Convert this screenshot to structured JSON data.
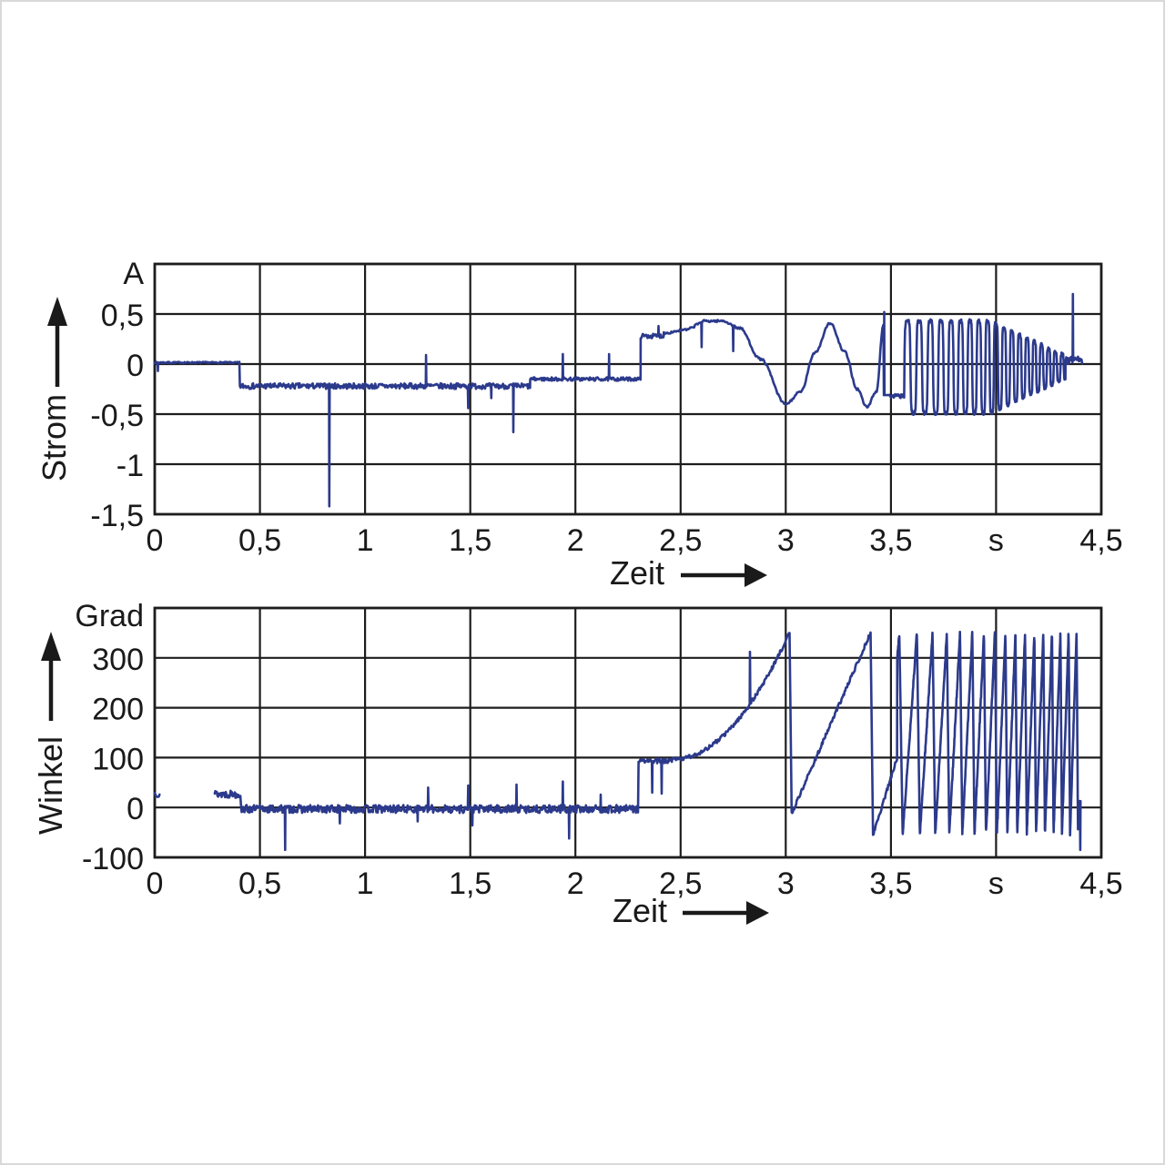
{
  "figure": {
    "background": "#ffffff",
    "frame_color": "#d9d9d9",
    "line_color": "#2c3a8c",
    "grid_color": "#1d1d1d",
    "text_color": "#1a1a1a"
  },
  "chart_data": [
    {
      "id": "strom",
      "type": "line",
      "title": "",
      "xlabel": "Zeit",
      "ylabel": "Strom",
      "unit_label": "A",
      "x_unit": "s",
      "x_range": [
        0,
        4.5
      ],
      "y_range": [
        -1.5,
        1.0
      ],
      "grid": true,
      "legend": "none",
      "x_ticks": {
        "values": [
          0,
          0.5,
          1,
          1.5,
          2,
          2.5,
          3,
          3.5,
          4,
          4.5
        ],
        "labels": [
          "0",
          "0,5",
          "1",
          "1,5",
          "2",
          "2,5",
          "3",
          "3,5",
          "s",
          "4,5"
        ]
      },
      "y_ticks": {
        "values": [
          0.5,
          0,
          -0.5,
          -1,
          -1.5
        ],
        "labels": [
          "0,5",
          "0",
          "-0,5",
          "-1",
          "-1,5"
        ]
      },
      "grid_y_values": [
        1.0,
        0.5,
        0,
        -0.5,
        -1.0,
        -1.5
      ],
      "segments": [
        {
          "type": "flat",
          "t0": 0.0,
          "t1": 0.405,
          "y": 0.015,
          "noise": 0.007
        },
        {
          "type": "flat",
          "t0": 0.405,
          "t1": 1.785,
          "y": -0.22,
          "noise": 0.028
        },
        {
          "type": "flat",
          "t0": 1.785,
          "t1": 2.31,
          "y": -0.15,
          "noise": 0.018
        },
        {
          "type": "flat",
          "t0": 2.31,
          "t1": 2.42,
          "y": 0.28,
          "noise": 0.022
        },
        {
          "type": "keys",
          "noise": 0.012,
          "points": [
            [
              2.42,
              0.31
            ],
            [
              2.52,
              0.34
            ],
            [
              2.62,
              0.43
            ],
            [
              2.7,
              0.43
            ],
            [
              2.78,
              0.36
            ],
            [
              2.88,
              0.05
            ],
            [
              3.0,
              -0.4
            ],
            [
              3.07,
              -0.28
            ],
            [
              3.14,
              0.12
            ],
            [
              3.21,
              0.41
            ],
            [
              3.28,
              0.12
            ],
            [
              3.34,
              -0.25
            ],
            [
              3.385,
              -0.43
            ],
            [
              3.43,
              -0.28
            ],
            [
              3.465,
              0.4
            ]
          ]
        },
        {
          "type": "flat",
          "t0": 3.49,
          "t1": 3.565,
          "y": -0.32,
          "noise": 0.02
        },
        {
          "type": "osc",
          "t0": 3.565,
          "t1": 4.33,
          "center": -0.03,
          "amp0": 0.46,
          "amp1": 0.11,
          "decay_start": 3.97,
          "f0": 17,
          "f1": 32,
          "shape": 3,
          "noise": 0.018
        },
        {
          "type": "flat",
          "t0": 4.33,
          "t1": 4.41,
          "y": 0.04,
          "noise": 0.035
        }
      ],
      "spikes": [
        [
          0.015,
          -0.07
        ],
        [
          0.83,
          -1.42
        ],
        [
          1.29,
          0.09
        ],
        [
          1.49,
          -0.44
        ],
        [
          1.6,
          -0.34
        ],
        [
          1.705,
          -0.68
        ],
        [
          1.94,
          0.1
        ],
        [
          2.16,
          0.1
        ],
        [
          2.395,
          0.38
        ],
        [
          2.6,
          0.17
        ],
        [
          2.75,
          0.13
        ],
        [
          3.468,
          0.52
        ],
        [
          4.365,
          0.7
        ]
      ]
    },
    {
      "id": "winkel",
      "type": "line",
      "title": "",
      "xlabel": "Zeit",
      "ylabel": "Winkel",
      "unit_label": "Grad",
      "x_unit": "s",
      "x_range": [
        0,
        4.5
      ],
      "y_range": [
        -100,
        400
      ],
      "grid": true,
      "legend": "none",
      "x_ticks": {
        "values": [
          0,
          0.5,
          1,
          1.5,
          2,
          2.5,
          3,
          3.5,
          4,
          4.5
        ],
        "labels": [
          "0",
          "0,5",
          "1",
          "1,5",
          "2",
          "2,5",
          "3",
          "3,5",
          "s",
          "4,5"
        ]
      },
      "y_ticks": {
        "values": [
          300,
          200,
          100,
          0,
          -100
        ],
        "labels": [
          "300",
          "200",
          "100",
          "0",
          "-100"
        ]
      },
      "grid_y_values": [
        400,
        300,
        200,
        100,
        0,
        -100
      ],
      "segments": [
        {
          "type": "flat",
          "t0": 0.0,
          "t1": 0.025,
          "y": 28,
          "noise": 7
        },
        {
          "type": "gap",
          "t0": 0.025,
          "t1": 0.285
        },
        {
          "type": "flat",
          "t0": 0.285,
          "t1": 0.41,
          "y": 27,
          "noise": 8
        },
        {
          "type": "flat",
          "t0": 0.41,
          "t1": 2.3,
          "y": -3,
          "noise": 8
        },
        {
          "type": "flat",
          "t0": 2.3,
          "t1": 2.46,
          "y": 93,
          "noise": 5
        },
        {
          "type": "ramp",
          "t0": 2.46,
          "t1": 3.02,
          "y0": 96,
          "y1": 352,
          "shape": "quad",
          "noise": 4
        },
        {
          "type": "ramp",
          "t0": 3.028,
          "t1": 3.405,
          "y0": -12,
          "y1": 352,
          "shape": "linear",
          "noise": 4
        },
        {
          "type": "ramp",
          "t0": 3.415,
          "t1": 3.53,
          "y0": -55,
          "y1": 100,
          "shape": "linear",
          "noise": 4
        },
        {
          "type": "saw",
          "t0": 3.53,
          "t1": 4.395,
          "ymin": -55,
          "ymax": 352,
          "f0": 11,
          "f1": 27,
          "rise": 0.82,
          "phase0": 0.7,
          "noise": 5
        }
      ],
      "spikes": [
        [
          0.62,
          -85
        ],
        [
          0.88,
          -32
        ],
        [
          1.25,
          -28
        ],
        [
          1.3,
          40
        ],
        [
          1.49,
          44
        ],
        [
          1.51,
          -36
        ],
        [
          1.72,
          46
        ],
        [
          1.94,
          52
        ],
        [
          1.97,
          -62
        ],
        [
          2.12,
          26
        ],
        [
          2.365,
          30
        ],
        [
          2.41,
          28
        ],
        [
          2.83,
          312
        ],
        [
          4.4,
          -85
        ]
      ]
    }
  ]
}
